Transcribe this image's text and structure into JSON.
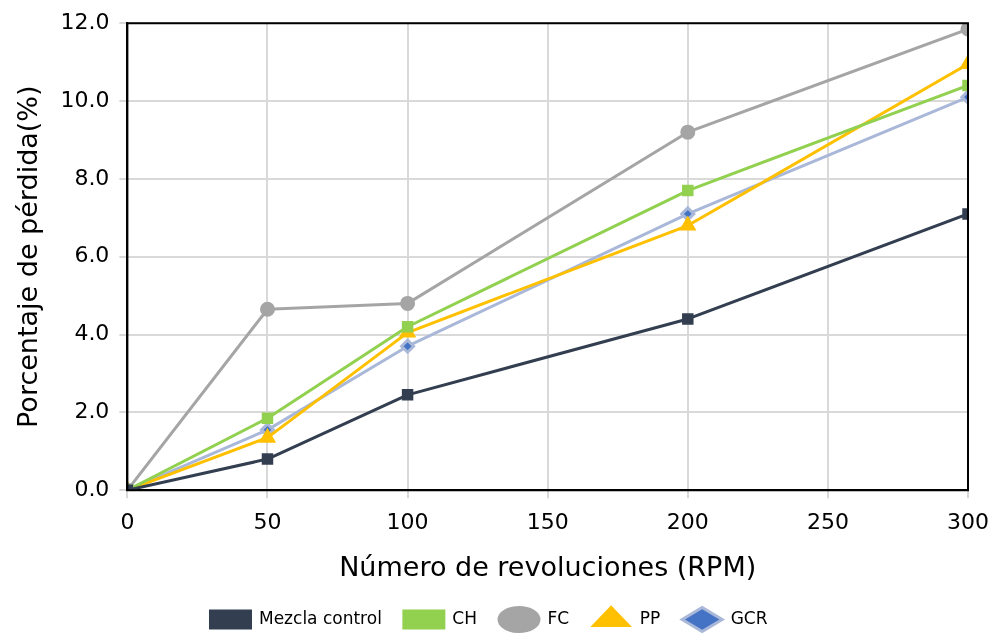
{
  "chart_data": {
    "type": "line",
    "xlabel": "Número de revoluciones (RPM)",
    "ylabel": "Porcentaje de pérdida(%)",
    "x": [
      0,
      50,
      100,
      200,
      300
    ],
    "xlim": [
      0,
      300
    ],
    "xticks": [
      0,
      50,
      100,
      150,
      200,
      250,
      300
    ],
    "ylim": [
      0,
      12
    ],
    "yticks": [
      {
        "value": 0,
        "label": "0.0"
      },
      {
        "value": 2,
        "label": "2.0"
      },
      {
        "value": 4,
        "label": "4.0"
      },
      {
        "value": 6,
        "label": "6.0"
      },
      {
        "value": 8,
        "label": "8.0"
      },
      {
        "value": 10,
        "label": "10.0"
      },
      {
        "value": 12,
        "label": "12.0"
      }
    ],
    "grid": true,
    "legend": "bottom",
    "line_style": "solid",
    "series": [
      {
        "name": "Mezcla control",
        "color": "#333f50",
        "marker": "square",
        "values": [
          0,
          0.8,
          2.45,
          4.4,
          7.1
        ]
      },
      {
        "name": "CH",
        "color": "#92d050",
        "marker": "square",
        "values": [
          0,
          1.85,
          4.2,
          7.7,
          10.4
        ]
      },
      {
        "name": "FC",
        "color": "#a5a5a5",
        "marker": "circle",
        "values": [
          0,
          4.65,
          4.8,
          9.2,
          11.85
        ]
      },
      {
        "name": "PP",
        "color": "#ffc000",
        "marker": "triangle",
        "values": [
          0,
          1.35,
          4.05,
          6.8,
          10.95
        ]
      },
      {
        "name": "GCR",
        "color": "#a9b8d8",
        "marker": "diamond",
        "values": [
          0,
          1.55,
          3.7,
          7.1,
          10.1
        ]
      }
    ]
  }
}
